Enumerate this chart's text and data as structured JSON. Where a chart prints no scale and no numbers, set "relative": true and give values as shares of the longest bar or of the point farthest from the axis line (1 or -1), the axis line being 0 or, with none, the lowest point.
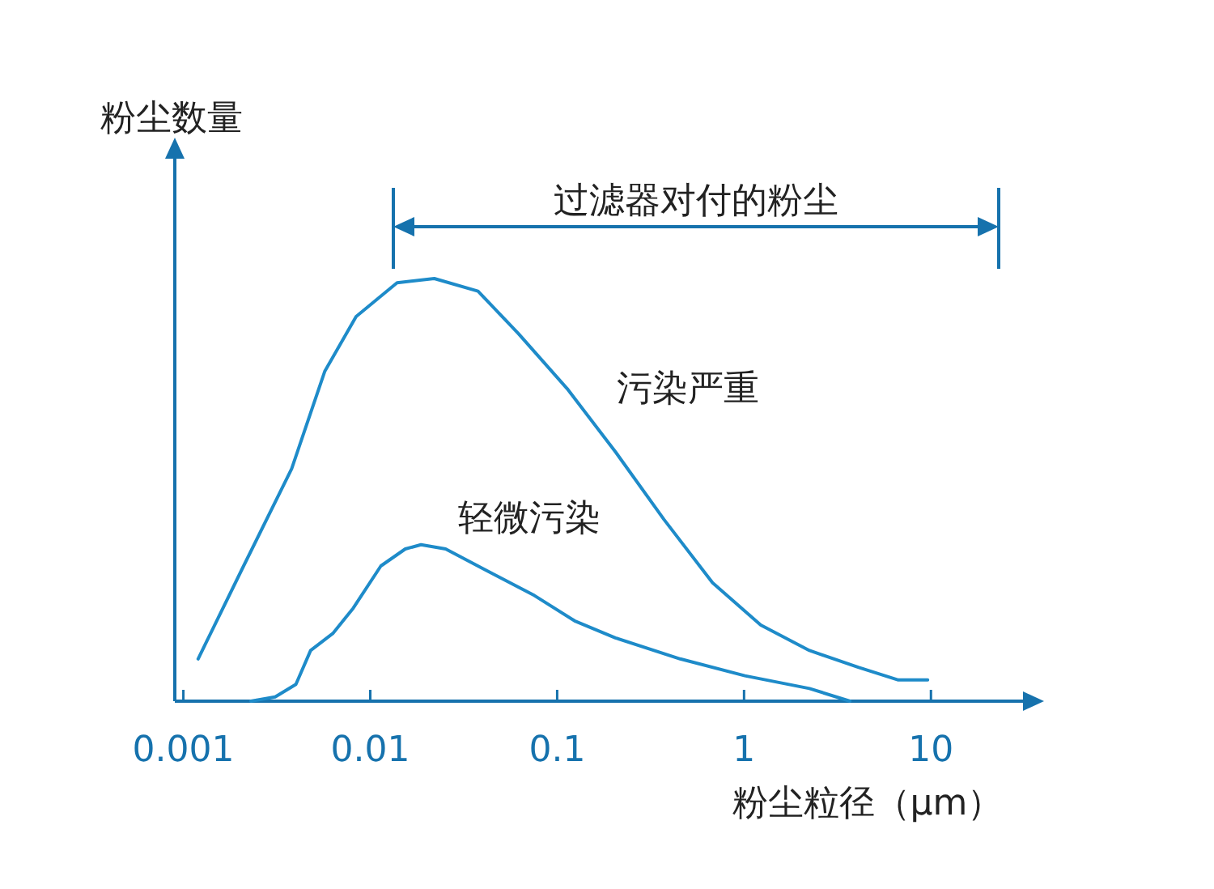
{
  "chart_data": {
    "type": "line",
    "relative": true,
    "log": "x",
    "xlabel": "粉尘粒径（μm）",
    "ylabel": "粉尘数量",
    "xlim": [
      0.0009,
      33
    ],
    "xticks": [
      {
        "value": 0.001,
        "label": "0.001"
      },
      {
        "value": 0.01,
        "label": "0.01"
      },
      {
        "value": 0.1,
        "label": "0.1"
      },
      {
        "value": 1,
        "label": "1"
      },
      {
        "value": 10,
        "label": "10"
      }
    ],
    "grid": false,
    "legend": false,
    "series": [
      {
        "name": "污染严重",
        "color": "#1e8bc9",
        "x": [
          0.0012,
          0.0021,
          0.0038,
          0.0057,
          0.0084,
          0.0139,
          0.022,
          0.0377,
          0.062,
          0.113,
          0.205,
          0.373,
          0.678,
          1.23,
          2.24,
          4.08,
          6.7,
          9.6
        ],
        "values": [
          0.1,
          0.32,
          0.55,
          0.78,
          0.91,
          0.99,
          1,
          0.97,
          0.87,
          0.74,
          0.59,
          0.43,
          0.28,
          0.18,
          0.12,
          0.08,
          0.05,
          0.05
        ]
      },
      {
        "name": "轻微污染",
        "color": "#1e8bc9",
        "x": [
          0.0023,
          0.0031,
          0.004,
          0.0048,
          0.0063,
          0.0081,
          0.0114,
          0.0154,
          0.0187,
          0.0253,
          0.0416,
          0.0757,
          0.124,
          0.205,
          0.455,
          1.01,
          2.24,
          3.69
        ],
        "values": [
          0,
          0.01,
          0.04,
          0.12,
          0.16,
          0.22,
          0.32,
          0.36,
          0.37,
          0.36,
          0.31,
          0.25,
          0.19,
          0.15,
          0.1,
          0.06,
          0.03,
          0
        ]
      }
    ],
    "annotations": [
      "过滤器对付的粉尘"
    ]
  }
}
